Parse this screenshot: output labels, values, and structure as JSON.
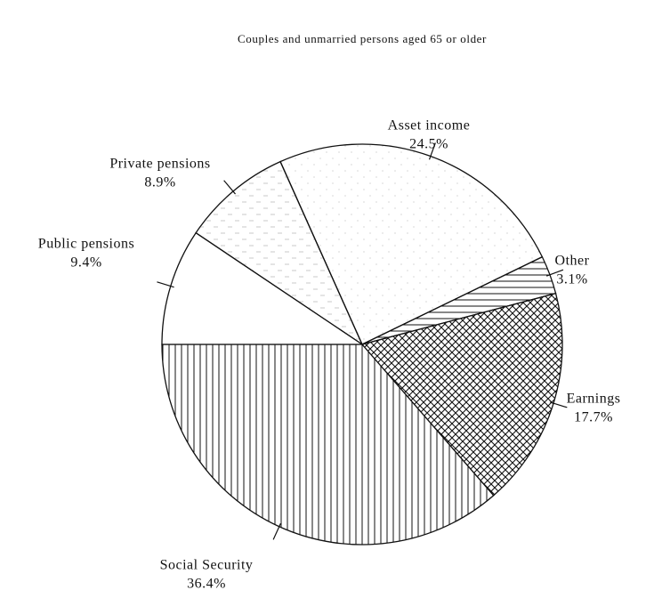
{
  "chart_data": {
    "type": "pie",
    "title": "Couples and unmarried persons aged 65 or older",
    "categories": [
      "Social Security",
      "Earnings",
      "Other",
      "Asset income",
      "Private pensions",
      "Public pensions"
    ],
    "values": [
      36.4,
      17.7,
      3.1,
      24.5,
      8.9,
      9.4
    ],
    "value_labels": [
      "36.4%",
      "17.7%",
      "3.1%",
      "24.5%",
      "8.9%",
      "9.4%"
    ],
    "patterns": [
      "vertical",
      "crosshatch",
      "horizontal",
      "dots",
      "dashes",
      "none"
    ]
  }
}
